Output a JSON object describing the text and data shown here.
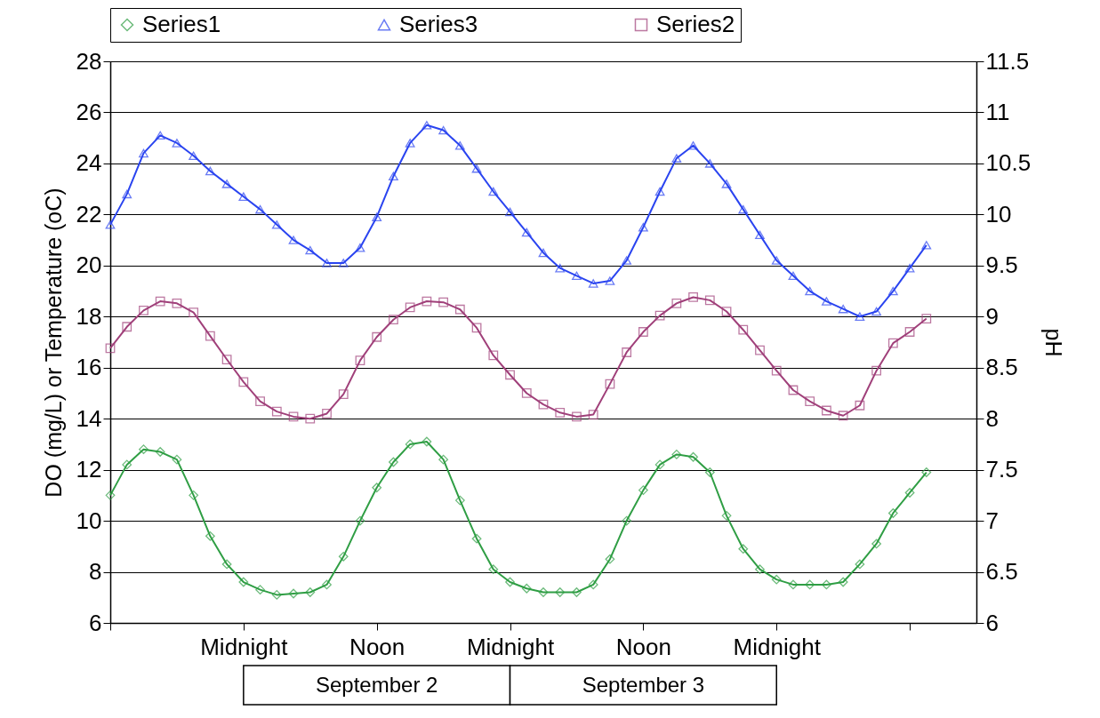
{
  "chart_data": {
    "type": "line",
    "ylabel": "DO (mg/L) or Temperature (oC)",
    "y2label": "pH",
    "categories": [
      null,
      null,
      null,
      null,
      null,
      null,
      null,
      null,
      "Midnight",
      null,
      null,
      null,
      null,
      null,
      null,
      null,
      "Noon",
      null,
      null,
      null,
      null,
      null,
      null,
      null,
      "Midnight",
      null,
      null,
      null,
      null,
      null,
      null,
      null,
      "Noon",
      null,
      null,
      null,
      null,
      null,
      null,
      null,
      "Midnight",
      null,
      null,
      null,
      null,
      null,
      null,
      null,
      null,
      null,
      null,
      null,
      null
    ],
    "ylim": [
      6,
      28
    ],
    "yticks": [
      6,
      8,
      10,
      12,
      14,
      16,
      18,
      20,
      22,
      24,
      26,
      28
    ],
    "y2lim": [
      6,
      11.5
    ],
    "y2ticks": [
      6,
      6.5,
      7,
      7.5,
      8,
      8.5,
      9,
      9.5,
      10,
      10.5,
      11,
      11.5
    ],
    "grid": "y",
    "legend": "top",
    "line_style": "solid",
    "annotations": [
      "September 2",
      "September 3"
    ],
    "series": [
      {
        "name": "Series1",
        "color": "#2f9e44",
        "marker": "diamond",
        "values": [
          11.0,
          12.2,
          12.8,
          12.7,
          12.4,
          11.0,
          9.4,
          8.3,
          7.6,
          7.3,
          7.1,
          7.15,
          7.2,
          7.5,
          8.6,
          10.0,
          11.3,
          12.3,
          13.0,
          13.1,
          12.4,
          10.8,
          9.3,
          8.1,
          7.6,
          7.35,
          7.2,
          7.2,
          7.2,
          7.5,
          8.5,
          10.0,
          11.2,
          12.2,
          12.6,
          12.5,
          11.9,
          10.2,
          8.9,
          8.1,
          7.7,
          7.5,
          7.5,
          7.5,
          7.6,
          8.3,
          9.1,
          10.3,
          11.1,
          11.9,
          null,
          null,
          null
        ]
      },
      {
        "name": "Series3",
        "color": "#2a44f0",
        "marker": "triangle",
        "values": [
          21.6,
          22.8,
          24.4,
          25.1,
          24.8,
          24.3,
          23.7,
          23.2,
          22.7,
          22.2,
          21.6,
          21.0,
          20.6,
          20.1,
          20.1,
          20.7,
          21.9,
          23.5,
          24.8,
          25.5,
          25.3,
          24.7,
          23.8,
          22.9,
          22.1,
          21.3,
          20.5,
          19.9,
          19.6,
          19.3,
          19.4,
          20.2,
          21.5,
          22.9,
          24.2,
          24.7,
          24.0,
          23.2,
          22.2,
          21.2,
          20.2,
          19.6,
          19.0,
          18.6,
          18.3,
          18.0,
          18.2,
          19.0,
          19.9,
          20.8,
          null,
          null,
          null
        ]
      },
      {
        "name": "Series2",
        "color": "#a0407a",
        "marker": "square",
        "axis": "y2",
        "values": [
          8.69,
          8.9,
          9.06,
          9.15,
          9.13,
          9.04,
          8.81,
          8.58,
          8.36,
          8.17,
          8.07,
          8.02,
          8.0,
          8.05,
          8.24,
          8.57,
          8.8,
          8.97,
          9.09,
          9.15,
          9.14,
          9.07,
          8.89,
          8.62,
          8.43,
          8.25,
          8.14,
          8.06,
          8.02,
          8.04,
          8.34,
          8.65,
          8.85,
          9.01,
          9.13,
          9.19,
          9.16,
          9.05,
          8.87,
          8.67,
          8.47,
          8.28,
          8.17,
          8.08,
          8.03,
          8.13,
          8.47,
          8.74,
          8.85,
          8.98,
          null,
          null,
          null
        ]
      }
    ]
  }
}
